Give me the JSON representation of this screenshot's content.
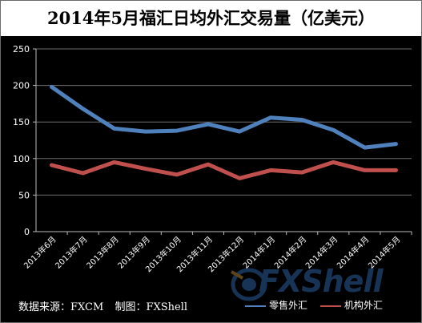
{
  "title": "2014年5月福汇日均外汇交易量（亿美元）",
  "footer": {
    "source": "数据来源：FXCM",
    "maker": "制图：FXShell"
  },
  "logo": "FXShell",
  "colors": {
    "retail": "#4f81bd",
    "institutional": "#c0504d",
    "background": "#000000"
  },
  "chart_data": {
    "type": "line",
    "title": "2014年5月福汇日均外汇交易量（亿美元）",
    "categories": [
      "2013年6月",
      "2013年7月",
      "2013年8月",
      "2013年9月",
      "2013年10月",
      "2013年11月",
      "2013年12月",
      "2014年1月",
      "2014年2月",
      "2014年3月",
      "2014年4月",
      "2014年5月"
    ],
    "series": [
      {
        "name": "零售外汇",
        "color": "#4f81bd",
        "values": [
          198,
          168,
          141,
          137,
          138,
          147,
          137,
          156,
          153,
          139,
          115,
          120
        ]
      },
      {
        "name": "机构外汇",
        "color": "#c0504d",
        "values": [
          91,
          80,
          95,
          86,
          78,
          92,
          73,
          84,
          81,
          95,
          84,
          84
        ]
      }
    ],
    "ylim": [
      0,
      250
    ],
    "yticks": [
      "0",
      "50",
      "100",
      "150",
      "200",
      "250"
    ],
    "grid": true,
    "legend": "bottom-right"
  }
}
